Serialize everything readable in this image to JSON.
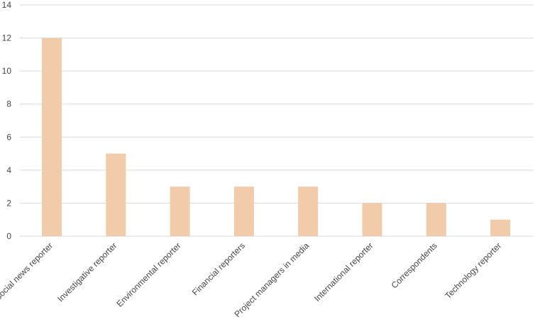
{
  "chart_data": {
    "type": "bar",
    "categories": [
      "Social news reporter",
      "Investigative reporter",
      "Environmental reporter",
      "Financial reporters",
      "Project managers in media",
      "International reporter",
      "Correspondents",
      "Technology reporter"
    ],
    "values": [
      12,
      5,
      3,
      3,
      3,
      2,
      2,
      1
    ],
    "yticks": [
      "0",
      "2",
      "4",
      "6",
      "8",
      "10",
      "12",
      "14"
    ],
    "ylim": [
      0,
      14
    ],
    "grid": true,
    "bar_color": "#f2cbaa",
    "title": "",
    "xlabel": "",
    "ylabel": ""
  }
}
